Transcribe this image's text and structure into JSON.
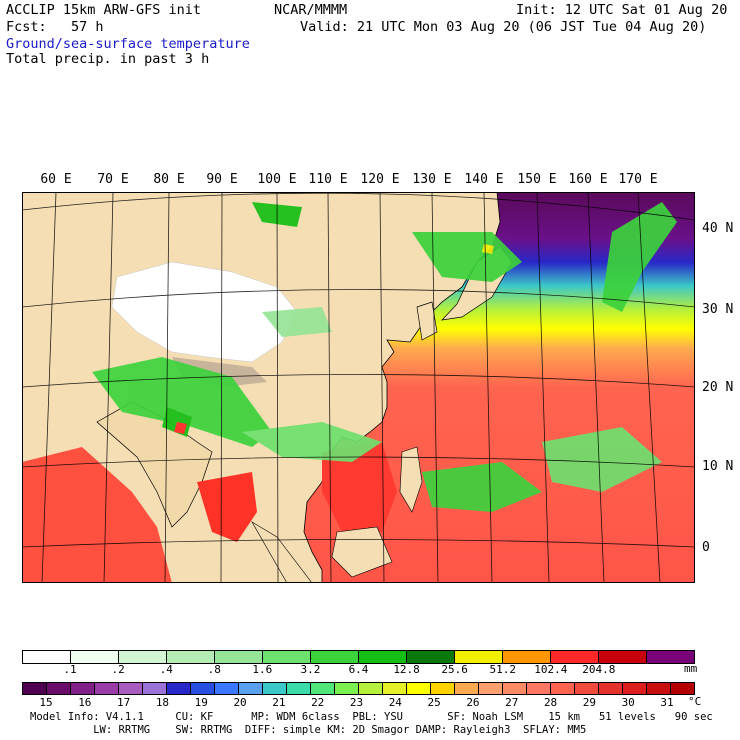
{
  "header": {
    "model_title": "ACCLIP 15km ARW-GFS init",
    "org": "NCAR/MMMM",
    "init": "Init: 12 UTC Sat 01 Aug 20",
    "fcst": "Fcst:   57 h",
    "valid": "Valid: 21 UTC Mon 03 Aug 20 (06 JST Tue 04 Aug 20)",
    "field_1": "Ground/sea-surface temperature",
    "field_2": "Total precip. in past 3 h"
  },
  "map": {
    "longitude_labels": [
      "60 E",
      "70 E",
      "80 E",
      "90 E",
      "100 E",
      "110 E",
      "120 E",
      "130 E",
      "140 E",
      "150 E",
      "160 E",
      "170 E"
    ],
    "latitude_labels": [
      "40 N",
      "30 N",
      "20 N",
      "10 N",
      "0"
    ]
  },
  "precip_scale": {
    "labels": [
      ".1",
      ".2",
      ".4",
      ".8",
      "1.6",
      "3.2",
      "6.4",
      "12.8",
      "25.6",
      "51.2",
      "102.4",
      "204.8"
    ],
    "unit": "mm",
    "colors": [
      "#ffffff",
      "#f0fff0",
      "#d2f5d2",
      "#b4ecb4",
      "#96e496",
      "#6ee06e",
      "#3cd23c",
      "#14be14",
      "#0a780a",
      "#f0f000",
      "#ff9600",
      "#ff2828",
      "#c8000a",
      "#780078"
    ]
  },
  "temp_scale": {
    "labels": [
      "15",
      "16",
      "17",
      "18",
      "19",
      "20",
      "21",
      "22",
      "23",
      "24",
      "25",
      "26",
      "27",
      "28",
      "29",
      "30",
      "31"
    ],
    "unit": "°C",
    "colors": [
      "#500050",
      "#6a0c6a",
      "#82208a",
      "#9a3ca8",
      "#a85cc0",
      "#9a72d8",
      "#2828c8",
      "#2850e0",
      "#3c78ff",
      "#5aa0f0",
      "#3cc8c8",
      "#3cdcaa",
      "#50e678",
      "#7cf050",
      "#b4f03c",
      "#e6f028",
      "#ffff00",
      "#ffd200",
      "#ffaa50",
      "#ffa06e",
      "#ff8c64",
      "#ff7864",
      "#ff6450",
      "#f04b3c",
      "#e6322d",
      "#dc1e1e",
      "#c80f0f",
      "#b40000"
    ]
  },
  "footer": {
    "line_1": "Model Info: V4.1.1     CU: KF      MP: WDM 6class  PBL: YSU       SF: Noah LSM    15 km   51 levels   90 sec",
    "line_2": "          LW: RRTMG    SW: RRTMG  DIFF: simple KM: 2D Smagor DAMP: Rayleigh3  SFLAY: MM5"
  }
}
